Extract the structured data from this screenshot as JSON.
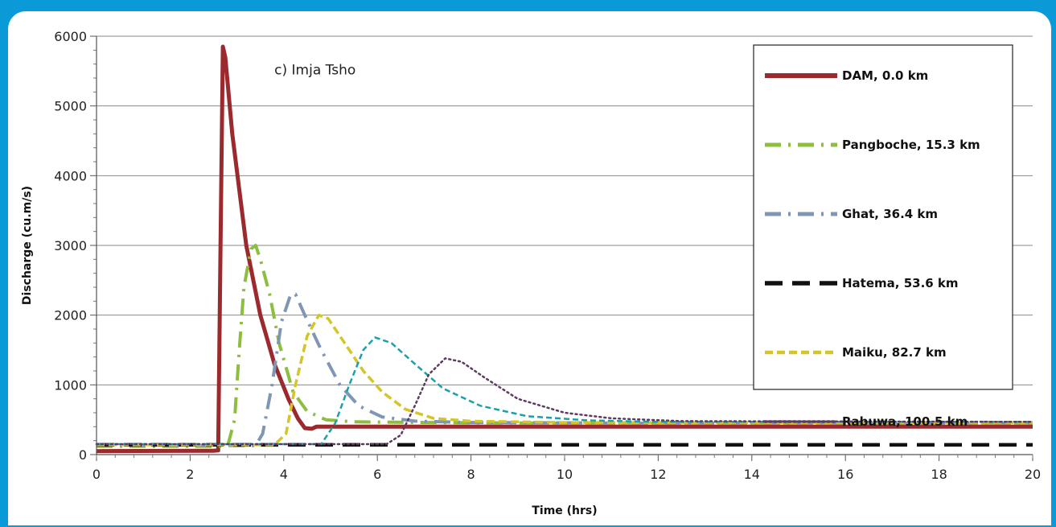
{
  "chart_data": {
    "type": "line",
    "title": "",
    "annotation": "c) Imja Tsho",
    "xlabel": "Time (hrs)",
    "ylabel": "Discharge (cu.m/s)",
    "xlim": [
      0,
      20
    ],
    "ylim": [
      0,
      6000
    ],
    "xticks": [
      0,
      2,
      4,
      6,
      8,
      10,
      12,
      14,
      16,
      18,
      20
    ],
    "yticks": [
      0,
      1000,
      2000,
      3000,
      4000,
      5000,
      6000
    ],
    "grid": "horizontal",
    "legend_position": "top-right",
    "series": [
      {
        "name": "DAM, 0.0 km",
        "color": "#9b2a2f",
        "style": "solid",
        "points": [
          [
            0,
            50
          ],
          [
            2.5,
            55
          ],
          [
            2.6,
            60
          ],
          [
            2.65,
            3000
          ],
          [
            2.7,
            5850
          ],
          [
            2.75,
            5700
          ],
          [
            2.9,
            4600
          ],
          [
            3.2,
            3000
          ],
          [
            3.5,
            2000
          ],
          [
            3.8,
            1300
          ],
          [
            4.1,
            800
          ],
          [
            4.3,
            520
          ],
          [
            4.45,
            380
          ],
          [
            4.6,
            370
          ],
          [
            4.7,
            400
          ],
          [
            5,
            400
          ],
          [
            8,
            400
          ],
          [
            12,
            400
          ],
          [
            16,
            400
          ],
          [
            20,
            400
          ]
        ]
      },
      {
        "name": "Pangboche, 15.3 km",
        "color": "#8cbf3f",
        "style": "dashdot",
        "points": [
          [
            0,
            120
          ],
          [
            2.8,
            120
          ],
          [
            2.95,
            500
          ],
          [
            3.05,
            1500
          ],
          [
            3.15,
            2400
          ],
          [
            3.3,
            2950
          ],
          [
            3.4,
            3000
          ],
          [
            3.5,
            2800
          ],
          [
            3.7,
            2300
          ],
          [
            3.9,
            1600
          ],
          [
            4.2,
            900
          ],
          [
            4.5,
            620
          ],
          [
            4.9,
            500
          ],
          [
            5.5,
            470
          ],
          [
            7,
            460
          ],
          [
            10,
            450
          ],
          [
            14,
            450
          ],
          [
            20,
            450
          ]
        ]
      },
      {
        "name": "Ghat, 36.4 km",
        "color": "#7f97b5",
        "style": "dashdot",
        "points": [
          [
            0,
            130
          ],
          [
            3.4,
            130
          ],
          [
            3.55,
            300
          ],
          [
            3.75,
            1000
          ],
          [
            3.95,
            1900
          ],
          [
            4.15,
            2300
          ],
          [
            4.25,
            2300
          ],
          [
            4.45,
            2000
          ],
          [
            4.8,
            1500
          ],
          [
            5.2,
            1000
          ],
          [
            5.6,
            700
          ],
          [
            6.1,
            540
          ],
          [
            6.8,
            480
          ],
          [
            8,
            460
          ],
          [
            12,
            450
          ],
          [
            20,
            450
          ]
        ]
      },
      {
        "name": "Hatema, 53.6 km",
        "color": "#111111",
        "style": "longdash",
        "points": [
          [
            0,
            140
          ],
          [
            20,
            140
          ]
        ]
      },
      {
        "name": "Maiku, 82.7 km",
        "color": "#d4c52a",
        "style": "dash",
        "points": [
          [
            0,
            140
          ],
          [
            3.8,
            140
          ],
          [
            4.05,
            300
          ],
          [
            4.25,
            1000
          ],
          [
            4.5,
            1700
          ],
          [
            4.75,
            2000
          ],
          [
            4.95,
            1950
          ],
          [
            5.3,
            1600
          ],
          [
            5.7,
            1200
          ],
          [
            6.1,
            900
          ],
          [
            6.6,
            650
          ],
          [
            7.2,
            520
          ],
          [
            8,
            480
          ],
          [
            10,
            460
          ],
          [
            14,
            460
          ],
          [
            20,
            460
          ]
        ]
      },
      {
        "name": "",
        "color": "#1aa1a8",
        "style": "shortdash",
        "points": [
          [
            0,
            150
          ],
          [
            4.8,
            150
          ],
          [
            5.1,
            450
          ],
          [
            5.4,
            1000
          ],
          [
            5.7,
            1500
          ],
          [
            5.95,
            1680
          ],
          [
            6.3,
            1600
          ],
          [
            6.8,
            1300
          ],
          [
            7.4,
            950
          ],
          [
            8.2,
            700
          ],
          [
            9.2,
            550
          ],
          [
            10.5,
            490
          ],
          [
            12,
            470
          ],
          [
            20,
            470
          ]
        ]
      },
      {
        "name": "Rabuwa, 100.5 km",
        "color": "#5e3a63",
        "style": "dotted",
        "points": [
          [
            0,
            150
          ],
          [
            6.2,
            150
          ],
          [
            6.5,
            280
          ],
          [
            6.8,
            700
          ],
          [
            7.1,
            1150
          ],
          [
            7.45,
            1380
          ],
          [
            7.8,
            1330
          ],
          [
            8.3,
            1100
          ],
          [
            9,
            800
          ],
          [
            10,
            600
          ],
          [
            11,
            520
          ],
          [
            12.5,
            480
          ],
          [
            20,
            470
          ]
        ]
      }
    ]
  }
}
